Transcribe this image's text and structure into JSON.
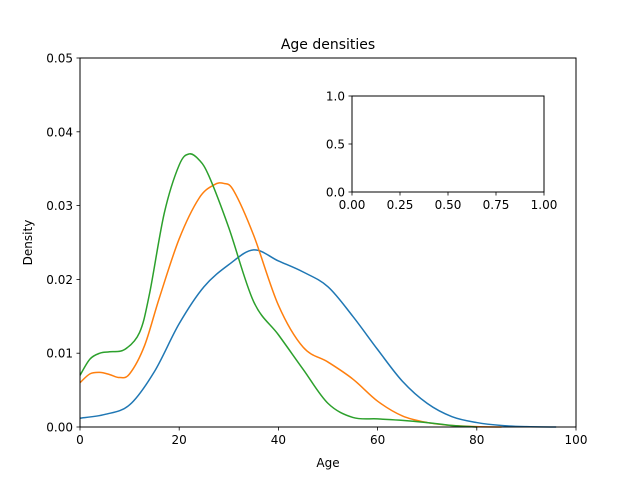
{
  "chart_data": [
    {
      "type": "line",
      "title": "Age densities",
      "xlabel": "Age",
      "ylabel": "Density",
      "xlim": [
        0,
        100
      ],
      "ylim": [
        0,
        0.05
      ],
      "xticks": [
        "0",
        "20",
        "40",
        "60",
        "80",
        "100"
      ],
      "yticks": [
        "0.00",
        "0.01",
        "0.02",
        "0.03",
        "0.04",
        "0.05"
      ],
      "grid": false,
      "series": [
        {
          "color": "#1f77b4",
          "x": [
            0,
            5,
            10,
            15,
            20,
            25,
            30,
            35,
            40,
            45,
            50,
            55,
            60,
            65,
            70,
            75,
            80,
            85,
            90,
            96
          ],
          "y": [
            0.0012,
            0.0017,
            0.003,
            0.0075,
            0.014,
            0.019,
            0.022,
            0.024,
            0.0225,
            0.021,
            0.019,
            0.015,
            0.0105,
            0.0062,
            0.0032,
            0.0014,
            0.0006,
            0.0002,
            5e-05,
            0.0
          ]
        },
        {
          "color": "#ff7f0e",
          "x": [
            0,
            2,
            4,
            6,
            8,
            10,
            13,
            16,
            20,
            24,
            27,
            29,
            31,
            35,
            40,
            45,
            50,
            55,
            60,
            65,
            70,
            75,
            80,
            85
          ],
          "y": [
            0.006,
            0.0072,
            0.0074,
            0.0071,
            0.0067,
            0.0072,
            0.011,
            0.0175,
            0.0255,
            0.031,
            0.0328,
            0.033,
            0.032,
            0.026,
            0.0165,
            0.0108,
            0.0088,
            0.0065,
            0.0035,
            0.0015,
            0.0006,
            0.0002,
            5e-05,
            0.0
          ]
        },
        {
          "color": "#2ca02c",
          "x": [
            0,
            2,
            4,
            6,
            9,
            12,
            14,
            17,
            20,
            22,
            24,
            26,
            30,
            35,
            40,
            45,
            50,
            55,
            60,
            65,
            70,
            75,
            80
          ],
          "y": [
            0.007,
            0.0092,
            0.01,
            0.0102,
            0.0105,
            0.0128,
            0.018,
            0.029,
            0.0355,
            0.037,
            0.0362,
            0.034,
            0.027,
            0.017,
            0.0125,
            0.0078,
            0.0032,
            0.0013,
            0.0011,
            0.0009,
            0.0006,
            0.0002,
            0.0
          ]
        }
      ]
    },
    {
      "type": "line",
      "title": "",
      "xlim": [
        0,
        1
      ],
      "ylim": [
        0,
        1
      ],
      "xticks": [
        "0.00",
        "0.25",
        "0.50",
        "0.75",
        "1.00"
      ],
      "yticks": [
        "0.0",
        "0.5",
        "1.0"
      ],
      "grid": false,
      "series": []
    }
  ]
}
